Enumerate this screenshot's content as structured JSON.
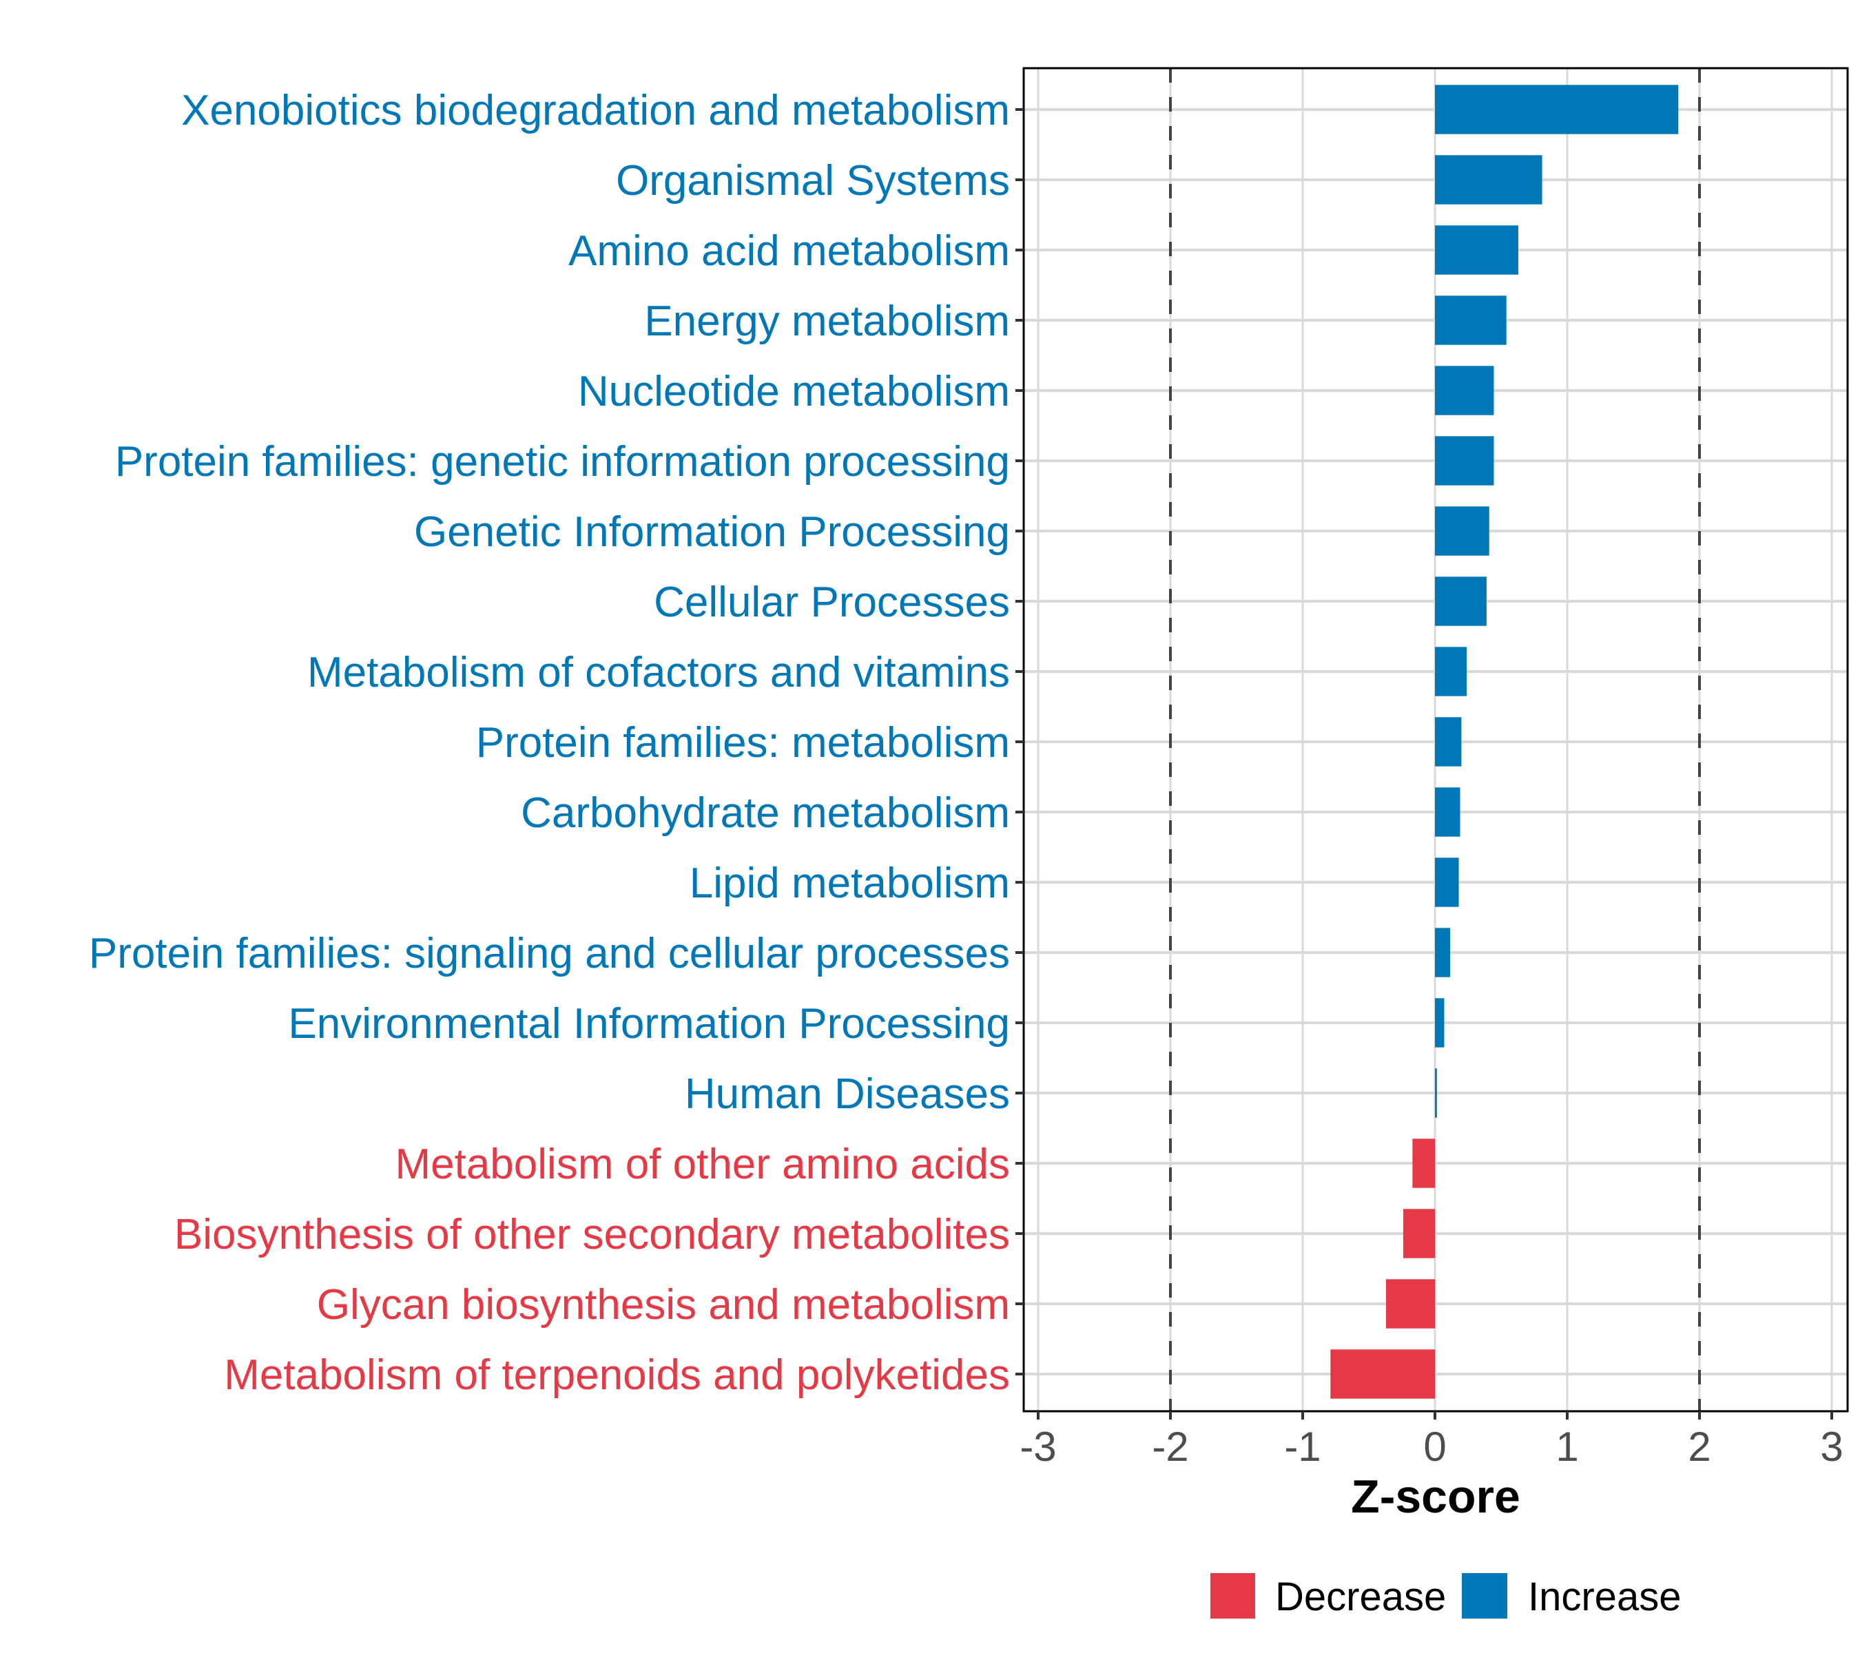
{
  "chart_data": {
    "type": "bar",
    "orientation": "horizontal",
    "title": "",
    "xlabel": "Z-score",
    "ylabel": "",
    "xlim": [
      -3.12,
      3.12
    ],
    "xticks": [
      -3,
      -2,
      -1,
      0,
      1,
      2,
      3
    ],
    "xtick_labels": [
      "-3",
      "-2",
      "-1",
      "0",
      "1",
      "2",
      "3"
    ],
    "reference_lines": [
      -2,
      2
    ],
    "grid": true,
    "legend_position": "bottom",
    "legend": [
      {
        "label": "Decrease",
        "color": "#E63946"
      },
      {
        "label": "Increase",
        "color": "#0077B6"
      }
    ],
    "categories": [
      "Xenobiotics biodegradation and metabolism",
      "Organismal Systems",
      "Amino acid metabolism",
      "Energy metabolism",
      "Nucleotide metabolism",
      "Protein families: genetic information processing",
      "Genetic Information Processing",
      "Cellular Processes",
      "Metabolism of cofactors and vitamins",
      "Protein families: metabolism",
      "Carbohydrate metabolism",
      "Lipid metabolism",
      "Protein families: signaling and cellular processes",
      "Environmental Information Processing",
      "Human Diseases",
      "Metabolism of other amino acids",
      "Biosynthesis of other secondary metabolites",
      "Glycan biosynthesis and metabolism",
      "Metabolism of terpenoids and polyketides"
    ],
    "values": [
      1.84,
      0.81,
      0.63,
      0.54,
      0.445,
      0.445,
      0.41,
      0.39,
      0.24,
      0.2,
      0.19,
      0.18,
      0.115,
      0.07,
      0.015,
      -0.17,
      -0.24,
      -0.37,
      -0.79
    ],
    "groups": [
      "Increase",
      "Increase",
      "Increase",
      "Increase",
      "Increase",
      "Increase",
      "Increase",
      "Increase",
      "Increase",
      "Increase",
      "Increase",
      "Increase",
      "Increase",
      "Increase",
      "Increase",
      "Decrease",
      "Decrease",
      "Decrease",
      "Decrease"
    ]
  }
}
